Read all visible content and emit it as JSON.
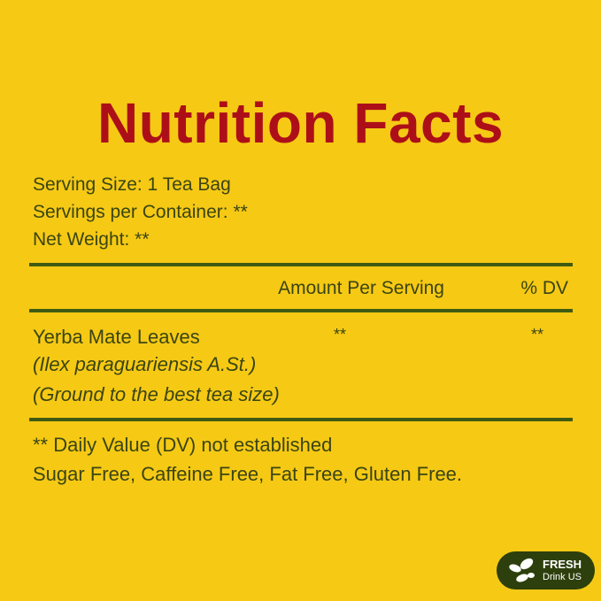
{
  "title": "Nutrition Facts",
  "serving_info": [
    "Serving Size: 1 Tea Bag",
    "Servings per Container: **",
    "Net Weight: **"
  ],
  "header": {
    "amount": "Amount Per Serving",
    "dv": "% DV"
  },
  "item": {
    "name": "Yerba Mate Leaves",
    "latin": "(Ilex paraguariensis A.St.)",
    "note": "(Ground to the best tea size)",
    "amount": "**",
    "dv": "**"
  },
  "footnotes": [
    "** Daily Value (DV) not established",
    "Sugar Free, Caffeine Free, Fat Free, Gluten Free."
  ],
  "logo": {
    "line1": "FRESH",
    "line2": "Drink US",
    "icon": "leaf-icon"
  },
  "colors": {
    "background": "#f6c915",
    "title": "#ad0f18",
    "text": "#3a4512",
    "rules": "#3f5b12",
    "logo": "#2d3f0c"
  }
}
